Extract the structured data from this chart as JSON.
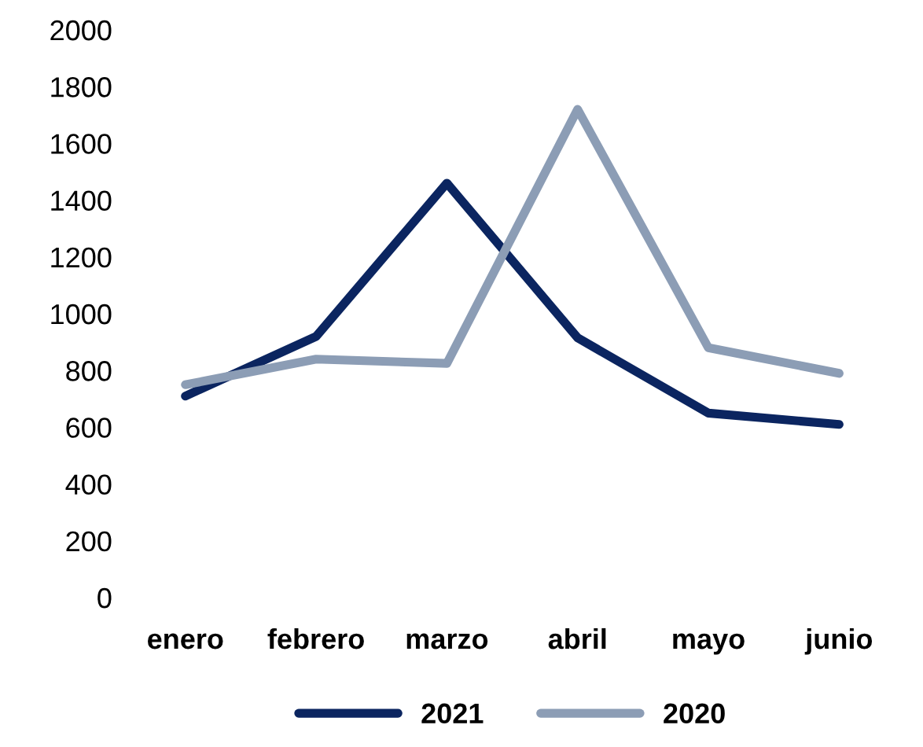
{
  "chart_data": {
    "type": "line",
    "categories": [
      "enero",
      "febrero",
      "marzo",
      "abril",
      "mayo",
      "junio"
    ],
    "series": [
      {
        "name": "2021",
        "color": "#0b2560",
        "values": [
          710,
          920,
          1460,
          915,
          650,
          610
        ]
      },
      {
        "name": "2020",
        "color": "#8c9db5",
        "values": [
          750,
          840,
          825,
          1720,
          880,
          790
        ]
      }
    ],
    "ylim": [
      0,
      2000
    ],
    "yticks": [
      0,
      200,
      400,
      600,
      800,
      1000,
      1200,
      1400,
      1600,
      1800,
      2000
    ],
    "grid": false,
    "legend": "bottom",
    "marker": "none",
    "line_style": "solid"
  }
}
